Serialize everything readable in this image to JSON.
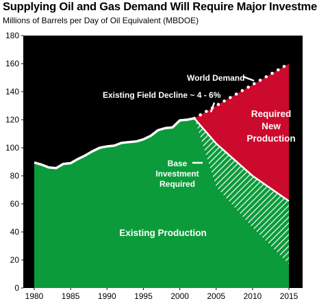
{
  "chart_data": {
    "type": "area",
    "title": "Supplying Oil and Gas Demand Will Require Major Investment",
    "subtitle": "Millions of Barrels per Day of Oil Equivalent (MBDOE)",
    "xlabel": "",
    "ylabel": "",
    "xlim": [
      1980,
      2015
    ],
    "ylim": [
      0,
      180
    ],
    "x_ticks": [
      "1980",
      "1985",
      "1990",
      "1995",
      "2000",
      "2005",
      "2010",
      "2015"
    ],
    "y_ticks": [
      "0",
      "20",
      "40",
      "60",
      "80",
      "100",
      "120",
      "140",
      "160",
      "180"
    ],
    "grid": false,
    "background": "#000000",
    "series": [
      {
        "name": "Existing Production",
        "color": "#0c9b3b",
        "x": [
          1980,
          1981,
          1982,
          1983,
          1984,
          1985,
          1986,
          1987,
          1988,
          1989,
          1990,
          1991,
          1992,
          1993,
          1994,
          1995,
          1996,
          1997,
          1998,
          1999,
          2000,
          2001,
          2002
        ],
        "y": [
          89.5,
          88,
          86,
          85.5,
          88.5,
          89,
          92,
          94.5,
          97.5,
          100,
          101,
          101.5,
          103.5,
          104,
          104.5,
          106,
          108.5,
          112.5,
          114,
          114.5,
          119.5,
          120,
          121
        ]
      },
      {
        "name": "Base Investment Required",
        "x": [
          2002,
          2005,
          2010,
          2015
        ],
        "y_top": [
          121,
          103,
          80,
          62
        ],
        "y_bottom": [
          121,
          72,
          43,
          17
        ]
      },
      {
        "name": "World Demand",
        "color": "#ffffff",
        "x": [
          2002,
          2015
        ],
        "y": [
          121,
          160
        ]
      },
      {
        "name": "Required New Production",
        "color": "#cc0a2d"
      }
    ],
    "annotations": {
      "world_demand": "World Demand",
      "existing_field_decline": "Existing Field Decline ~ 4 - 6%",
      "required_new_production": [
        "Required",
        "New",
        "Production"
      ],
      "base_investment": [
        "Base",
        "Investment",
        "Required"
      ],
      "existing_production": "Existing Production"
    }
  }
}
